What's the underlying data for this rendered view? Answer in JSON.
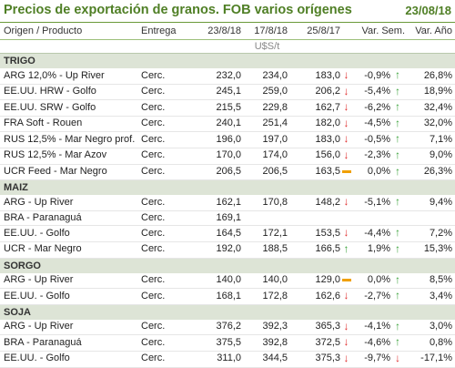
{
  "title": "Precios de exportación de granos. FOB varios orígenes",
  "date": "23/08/18",
  "headers": {
    "product": "Origen / Producto",
    "delivery": "Entrega",
    "d1": "23/8/18",
    "d2": "17/8/18",
    "d3": "25/8/17",
    "var_week": "Var. Sem.",
    "var_year": "Var. Año"
  },
  "units": "U$S/t",
  "sections": [
    {
      "name": "TRIGO",
      "rows": [
        {
          "product": "ARG 12,0% - Up River",
          "delivery": "Cerc.",
          "d1": "232,0",
          "d2": "234,0",
          "d3": "183,0",
          "d3_icon": "down",
          "var_week": "-0,9%",
          "week_icon": "up",
          "var_year": "26,8%"
        },
        {
          "product": "EE.UU. HRW - Golfo",
          "delivery": "Cerc.",
          "d1": "245,1",
          "d2": "259,0",
          "d3": "206,2",
          "d3_icon": "down",
          "var_week": "-5,4%",
          "week_icon": "up",
          "var_year": "18,9%"
        },
        {
          "product": "EE.UU. SRW - Golfo",
          "delivery": "Cerc.",
          "d1": "215,5",
          "d2": "229,8",
          "d3": "162,7",
          "d3_icon": "down",
          "var_week": "-6,2%",
          "week_icon": "up",
          "var_year": "32,4%"
        },
        {
          "product": "FRA Soft - Rouen",
          "delivery": "Cerc.",
          "d1": "240,1",
          "d2": "251,4",
          "d3": "182,0",
          "d3_icon": "down",
          "var_week": "-4,5%",
          "week_icon": "up",
          "var_year": "32,0%"
        },
        {
          "product": "RUS 12,5% - Mar Negro prof.",
          "delivery": "Cerc.",
          "d1": "196,0",
          "d2": "197,0",
          "d3": "183,0",
          "d3_icon": "down",
          "var_week": "-0,5%",
          "week_icon": "up",
          "var_year": "7,1%"
        },
        {
          "product": "RUS 12,5% - Mar Azov",
          "delivery": "Cerc.",
          "d1": "170,0",
          "d2": "174,0",
          "d3": "156,0",
          "d3_icon": "down",
          "var_week": "-2,3%",
          "week_icon": "up",
          "var_year": "9,0%"
        },
        {
          "product": "UCR Feed - Mar Negro",
          "delivery": "Cerc.",
          "d1": "206,5",
          "d2": "206,5",
          "d3": "163,5",
          "d3_icon": "flat",
          "var_week": "0,0%",
          "week_icon": "up",
          "var_year": "26,3%"
        }
      ]
    },
    {
      "name": "MAIZ",
      "rows": [
        {
          "product": "ARG - Up River",
          "delivery": "Cerc.",
          "d1": "162,1",
          "d2": "170,8",
          "d3": "148,2",
          "d3_icon": "down",
          "var_week": "-5,1%",
          "week_icon": "up",
          "var_year": "9,4%"
        },
        {
          "product": "BRA - Paranaguá",
          "delivery": "Cerc.",
          "d1": "169,1",
          "d2": "",
          "d3": "",
          "d3_icon": "",
          "var_week": "",
          "week_icon": "",
          "var_year": ""
        },
        {
          "product": "EE.UU. - Golfo",
          "delivery": "Cerc.",
          "d1": "164,5",
          "d2": "172,1",
          "d3": "153,5",
          "d3_icon": "down",
          "var_week": "-4,4%",
          "week_icon": "up",
          "var_year": "7,2%"
        },
        {
          "product": "UCR - Mar Negro",
          "delivery": "Cerc.",
          "d1": "192,0",
          "d2": "188,5",
          "d3": "166,5",
          "d3_icon": "up",
          "var_week": "1,9%",
          "week_icon": "up",
          "var_year": "15,3%"
        }
      ]
    },
    {
      "name": "SORGO",
      "rows": [
        {
          "product": "ARG - Up River",
          "delivery": "Cerc.",
          "d1": "140,0",
          "d2": "140,0",
          "d3": "129,0",
          "d3_icon": "flat",
          "var_week": "0,0%",
          "week_icon": "up",
          "var_year": "8,5%"
        },
        {
          "product": "EE.UU. - Golfo",
          "delivery": "Cerc.",
          "d1": "168,1",
          "d2": "172,8",
          "d3": "162,6",
          "d3_icon": "down",
          "var_week": "-2,7%",
          "week_icon": "up",
          "var_year": "3,4%"
        }
      ]
    },
    {
      "name": "SOJA",
      "rows": [
        {
          "product": "ARG - Up River",
          "delivery": "Cerc.",
          "d1": "376,2",
          "d2": "392,3",
          "d3": "365,3",
          "d3_icon": "down",
          "var_week": "-4,1%",
          "week_icon": "up",
          "var_year": "3,0%"
        },
        {
          "product": "BRA - Paranaguá",
          "delivery": "Cerc.",
          "d1": "375,5",
          "d2": "392,8",
          "d3": "372,5",
          "d3_icon": "down",
          "var_week": "-4,6%",
          "week_icon": "up",
          "var_year": "0,8%"
        },
        {
          "product": "EE.UU. - Golfo",
          "delivery": "Cerc.",
          "d1": "311,0",
          "d2": "344,5",
          "d3": "375,3",
          "d3_icon": "down",
          "var_week": "-9,7%",
          "week_icon": "down",
          "var_year": "-17,1%"
        }
      ]
    }
  ]
}
